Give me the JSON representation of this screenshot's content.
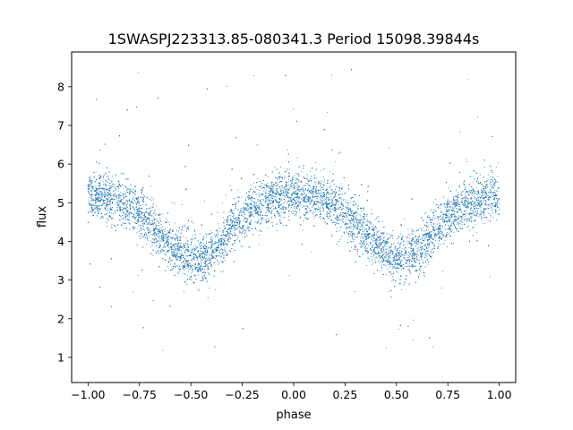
{
  "chart_data": {
    "type": "scatter",
    "title": "1SWASPJ223313.85-080341.3 Period 15098.39844s",
    "xlabel": "phase",
    "ylabel": "flux",
    "xlim": [
      -1.08,
      1.08
    ],
    "ylim": [
      0.35,
      8.9
    ],
    "x_ticks": [
      -1.0,
      -0.75,
      -0.5,
      -0.25,
      0.0,
      0.25,
      0.5,
      0.75,
      1.0
    ],
    "x_tick_labels": [
      "−1.00",
      "−0.75",
      "−0.50",
      "−0.25",
      "0.00",
      "0.25",
      "0.50",
      "0.75",
      "1.00"
    ],
    "y_ticks": [
      1,
      2,
      3,
      4,
      5,
      6,
      7,
      8
    ],
    "y_tick_labels": [
      "1",
      "2",
      "3",
      "4",
      "5",
      "6",
      "7",
      "8"
    ],
    "grid": false,
    "legend": "none",
    "series": [
      {
        "marker_color": "#1f77b4",
        "n_points_approx": 16000,
        "phase_range": [
          -1.0,
          1.0
        ],
        "median_flux_curve": {
          "x": [
            -1.0,
            -0.9,
            -0.8,
            -0.7,
            -0.6,
            -0.5,
            -0.4,
            -0.3,
            -0.2,
            -0.1,
            0.0,
            0.1,
            0.2,
            0.3,
            0.4,
            0.5,
            0.6,
            0.7,
            0.8,
            0.9,
            1.0
          ],
          "y": [
            5.2,
            5.15,
            4.95,
            4.5,
            3.9,
            3.5,
            3.7,
            4.35,
            4.85,
            5.1,
            5.2,
            5.15,
            4.95,
            4.5,
            3.9,
            3.5,
            3.7,
            4.35,
            4.85,
            5.1,
            5.2
          ]
        },
        "scatter_spread": 0.3,
        "outlier_range": [
          0.7,
          8.5
        ]
      }
    ]
  }
}
